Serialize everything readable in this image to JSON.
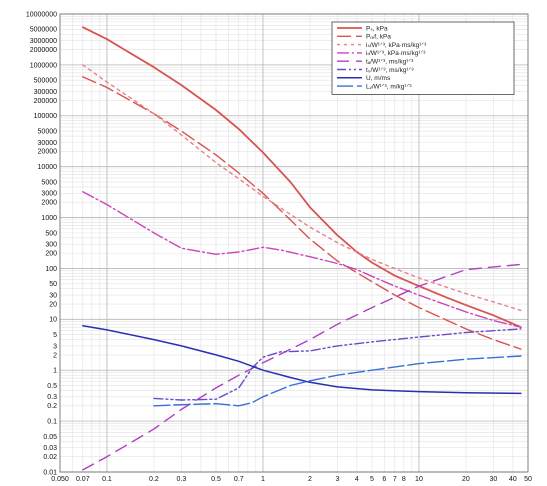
{
  "chart_data": {
    "type": "line",
    "xscale": "log",
    "yscale": "log",
    "xlim": [
      0.05,
      50
    ],
    "ylim": [
      0.01,
      10000000
    ],
    "grid": true,
    "legend_position": "top-right",
    "xticks": [
      {
        "v": 0.05,
        "label": "0.050"
      },
      {
        "v": 0.07,
        "label": "0.07"
      },
      {
        "v": 0.1,
        "label": "0.1"
      },
      {
        "v": 0.2,
        "label": "0.2"
      },
      {
        "v": 0.3,
        "label": "0.3"
      },
      {
        "v": 0.5,
        "label": "0.5"
      },
      {
        "v": 0.7,
        "label": "0.7"
      },
      {
        "v": 1,
        "label": "1"
      },
      {
        "v": 2,
        "label": "2"
      },
      {
        "v": 3,
        "label": "3"
      },
      {
        "v": 4,
        "label": "4"
      },
      {
        "v": 5,
        "label": "5"
      },
      {
        "v": 6,
        "label": "6"
      },
      {
        "v": 7,
        "label": "7"
      },
      {
        "v": 8,
        "label": "8"
      },
      {
        "v": 10,
        "label": "10"
      },
      {
        "v": 20,
        "label": "20"
      },
      {
        "v": 30,
        "label": "30"
      },
      {
        "v": 40,
        "label": "40"
      },
      {
        "v": 50,
        "label": "50"
      }
    ],
    "yticks": [
      {
        "v": 10000000,
        "label": "10000000"
      },
      {
        "v": 5000000,
        "label": "5000000"
      },
      {
        "v": 3000000,
        "label": "3000000"
      },
      {
        "v": 2000000,
        "label": "2000000"
      },
      {
        "v": 1000000,
        "label": "1000000"
      },
      {
        "v": 500000,
        "label": "500000"
      },
      {
        "v": 300000,
        "label": "300000"
      },
      {
        "v": 200000,
        "label": "200000"
      },
      {
        "v": 100000,
        "label": "100000"
      },
      {
        "v": 50000,
        "label": "50000"
      },
      {
        "v": 30000,
        "label": "30000"
      },
      {
        "v": 20000,
        "label": "20000"
      },
      {
        "v": 10000,
        "label": "10000"
      },
      {
        "v": 5000,
        "label": "5000"
      },
      {
        "v": 3000,
        "label": "3000"
      },
      {
        "v": 2000,
        "label": "2000"
      },
      {
        "v": 1000,
        "label": "1000"
      },
      {
        "v": 500,
        "label": "500"
      },
      {
        "v": 300,
        "label": "300"
      },
      {
        "v": 200,
        "label": "200"
      },
      {
        "v": 100,
        "label": "100"
      },
      {
        "v": 50,
        "label": "50"
      },
      {
        "v": 30,
        "label": "30"
      },
      {
        "v": 20,
        "label": "20"
      },
      {
        "v": 10,
        "label": "10"
      },
      {
        "v": 5,
        "label": "5"
      },
      {
        "v": 3,
        "label": "3"
      },
      {
        "v": 2,
        "label": "2"
      },
      {
        "v": 1,
        "label": "1"
      },
      {
        "v": 0.5,
        "label": "0.5"
      },
      {
        "v": 0.3,
        "label": "0.3"
      },
      {
        "v": 0.2,
        "label": "0.2"
      },
      {
        "v": 0.1,
        "label": "0.1"
      },
      {
        "v": 0.05,
        "label": "0.05"
      },
      {
        "v": 0.03,
        "label": "0.03"
      },
      {
        "v": 0.02,
        "label": "0.02"
      },
      {
        "v": 0.01,
        "label": "0.01"
      }
    ],
    "series": [
      {
        "name": "Pₛ, kPa",
        "color": "#d9534f",
        "dash": "",
        "width": 1.8,
        "points": [
          [
            0.07,
            5500000
          ],
          [
            0.1,
            3200000
          ],
          [
            0.2,
            900000
          ],
          [
            0.3,
            400000
          ],
          [
            0.5,
            130000
          ],
          [
            0.7,
            55000
          ],
          [
            1,
            19000
          ],
          [
            1.5,
            5000
          ],
          [
            2,
            1600
          ],
          [
            3,
            450
          ],
          [
            4,
            210
          ],
          [
            5,
            130
          ],
          [
            7,
            72
          ],
          [
            10,
            45
          ],
          [
            15,
            27
          ],
          [
            20,
            19
          ],
          [
            30,
            12
          ],
          [
            45,
            7
          ]
        ]
      },
      {
        "name": "Pᵣₑf, kPa",
        "color": "#d9534f",
        "dash": "14 5",
        "width": 1.4,
        "points": [
          [
            0.07,
            580000
          ],
          [
            0.1,
            360000
          ],
          [
            0.2,
            110000
          ],
          [
            0.3,
            50000
          ],
          [
            0.5,
            17000
          ],
          [
            0.7,
            7500
          ],
          [
            1,
            3000
          ],
          [
            1.5,
            900
          ],
          [
            2,
            380
          ],
          [
            3,
            140
          ],
          [
            5,
            55
          ],
          [
            7,
            30
          ],
          [
            10,
            17
          ],
          [
            20,
            6.5
          ],
          [
            30,
            4
          ],
          [
            45,
            2.6
          ]
        ]
      },
      {
        "name": "iₛ/W¹ᐟ³, kPa·ms/kg¹ᐟ³",
        "color": "#e4838b",
        "dash": "3 4",
        "width": 1.4,
        "points": [
          [
            0.07,
            1000000
          ],
          [
            0.1,
            460000
          ],
          [
            0.2,
            110000
          ],
          [
            0.3,
            42000
          ],
          [
            0.5,
            12000
          ],
          [
            0.7,
            5800
          ],
          [
            1,
            2600
          ],
          [
            2,
            650
          ],
          [
            3,
            320
          ],
          [
            5,
            150
          ],
          [
            10,
            65
          ],
          [
            20,
            32
          ],
          [
            30,
            22
          ],
          [
            45,
            15
          ]
        ]
      },
      {
        "name": "iᵣ/W¹ᐟ³, kPa·ms/kg¹ᐟ³",
        "color": "#cc44bb",
        "dash": "12 3 2 3",
        "width": 1.4,
        "points": [
          [
            0.07,
            3200
          ],
          [
            0.1,
            1800
          ],
          [
            0.2,
            500
          ],
          [
            0.3,
            250
          ],
          [
            0.5,
            190
          ],
          [
            0.7,
            210
          ],
          [
            1,
            260
          ],
          [
            1.3,
            230
          ],
          [
            2,
            170
          ],
          [
            3,
            125
          ],
          [
            4,
            95
          ],
          [
            5,
            70
          ],
          [
            7,
            45
          ],
          [
            10,
            30
          ],
          [
            20,
            14
          ],
          [
            30,
            9.5
          ],
          [
            45,
            7
          ]
        ]
      },
      {
        "name": "tₐ/W¹ᐟ³, ms/kg¹ᐟ³",
        "color": "#b03fc0",
        "dash": "12 7",
        "width": 1.4,
        "points": [
          [
            0.07,
            0.011
          ],
          [
            0.1,
            0.02
          ],
          [
            0.2,
            0.07
          ],
          [
            0.3,
            0.17
          ],
          [
            0.5,
            0.45
          ],
          [
            0.7,
            0.8
          ],
          [
            1,
            1.4
          ],
          [
            2,
            4
          ],
          [
            3,
            8
          ],
          [
            5,
            17
          ],
          [
            10,
            45
          ],
          [
            20,
            95
          ],
          [
            45,
            120
          ]
        ]
      },
      {
        "name": "t₀/W¹ᐟ³, ms/kg¹ᐟ³",
        "color": "#6b4bc8",
        "dash": "9 3 2 3 2 3",
        "width": 1.4,
        "points": [
          [
            0.2,
            0.28
          ],
          [
            0.3,
            0.26
          ],
          [
            0.5,
            0.27
          ],
          [
            0.7,
            0.45
          ],
          [
            0.85,
            1.1
          ],
          [
            1,
            1.8
          ],
          [
            1.3,
            2.3
          ],
          [
            2,
            2.4
          ],
          [
            3,
            3
          ],
          [
            5,
            3.6
          ],
          [
            10,
            4.5
          ],
          [
            20,
            5.5
          ],
          [
            45,
            6.5
          ]
        ]
      },
      {
        "name": "U, m/ms",
        "color": "#2a2db5",
        "dash": "",
        "width": 1.5,
        "points": [
          [
            0.07,
            7.5
          ],
          [
            0.1,
            6.2
          ],
          [
            0.2,
            4
          ],
          [
            0.3,
            3
          ],
          [
            0.5,
            2
          ],
          [
            0.7,
            1.5
          ],
          [
            1,
            1
          ],
          [
            1.5,
            0.72
          ],
          [
            2,
            0.58
          ],
          [
            3,
            0.47
          ],
          [
            5,
            0.41
          ],
          [
            10,
            0.38
          ],
          [
            20,
            0.36
          ],
          [
            45,
            0.35
          ]
        ]
      },
      {
        "name": "Lᵥ/W¹ᐟ³, m/kg¹ᐟ³",
        "color": "#3a6fd8",
        "dash": "16 4",
        "width": 1.4,
        "points": [
          [
            0.2,
            0.2
          ],
          [
            0.3,
            0.21
          ],
          [
            0.5,
            0.22
          ],
          [
            0.7,
            0.2
          ],
          [
            0.85,
            0.23
          ],
          [
            1,
            0.3
          ],
          [
            1.5,
            0.5
          ],
          [
            2,
            0.62
          ],
          [
            3,
            0.8
          ],
          [
            5,
            1
          ],
          [
            10,
            1.35
          ],
          [
            20,
            1.65
          ],
          [
            45,
            1.9
          ]
        ]
      }
    ]
  }
}
